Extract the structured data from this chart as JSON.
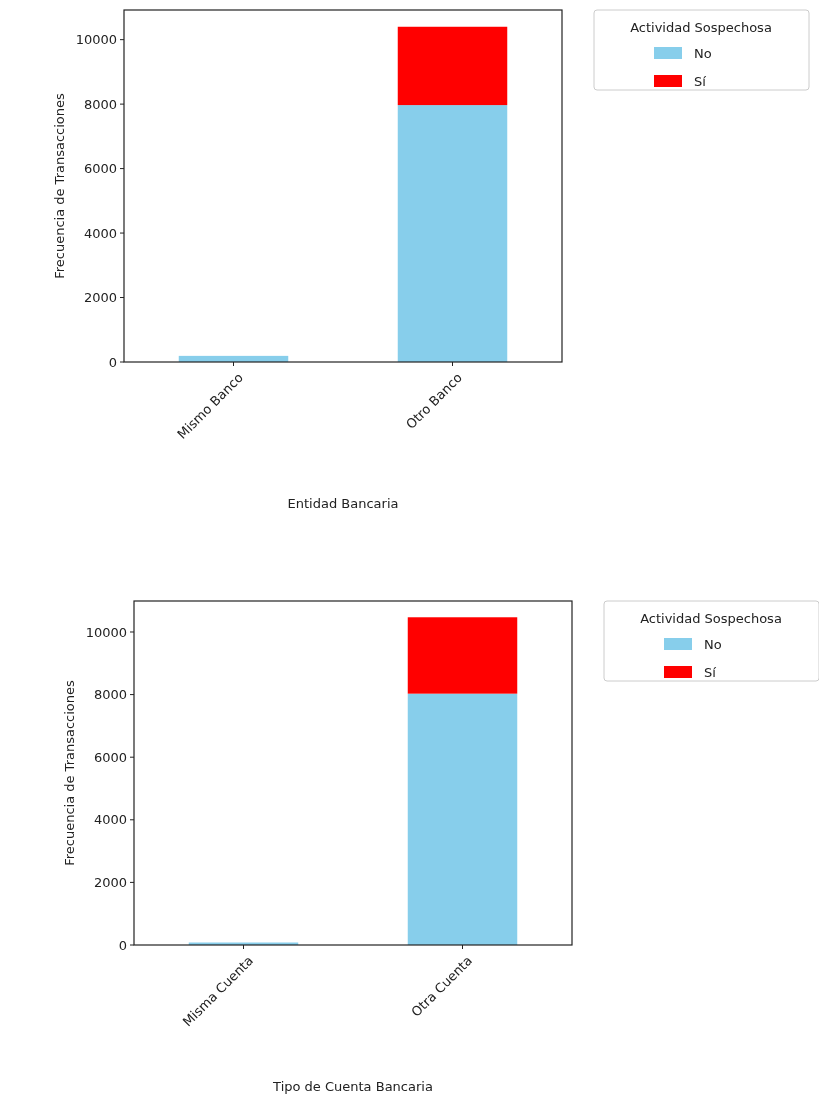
{
  "chart_data": [
    {
      "type": "bar",
      "stacked": true,
      "xlabel": "Entidad Bancaria",
      "ylabel": "Frecuencia de Transacciones",
      "categories": [
        "Mismo Banco",
        "Otro Banco"
      ],
      "legend_title": "Actividad Sospechosa",
      "legend": "top right",
      "series": [
        {
          "name": "No",
          "color": "#87ceeb",
          "values": [
            190,
            7970
          ]
        },
        {
          "name": "Sí",
          "color": "#ff0000",
          "values": [
            0,
            2430
          ]
        }
      ],
      "ylim": [
        0,
        10920
      ],
      "yticks": [
        0,
        2000,
        4000,
        6000,
        8000,
        10000
      ],
      "grid": false
    },
    {
      "type": "bar",
      "stacked": true,
      "xlabel": "Tipo de Cuenta Bancaria",
      "ylabel": "Frecuencia de Transacciones",
      "categories": [
        "Misma Cuenta",
        "Otra Cuenta"
      ],
      "legend_title": "Actividad Sospechosa",
      "legend": "top right",
      "series": [
        {
          "name": "No",
          "color": "#87ceeb",
          "values": [
            80,
            8030
          ]
        },
        {
          "name": "Sí",
          "color": "#ff0000",
          "values": [
            0,
            2440
          ]
        }
      ],
      "ylim": [
        0,
        10990
      ],
      "yticks": [
        0,
        2000,
        4000,
        6000,
        8000,
        10000
      ],
      "grid": false
    }
  ]
}
